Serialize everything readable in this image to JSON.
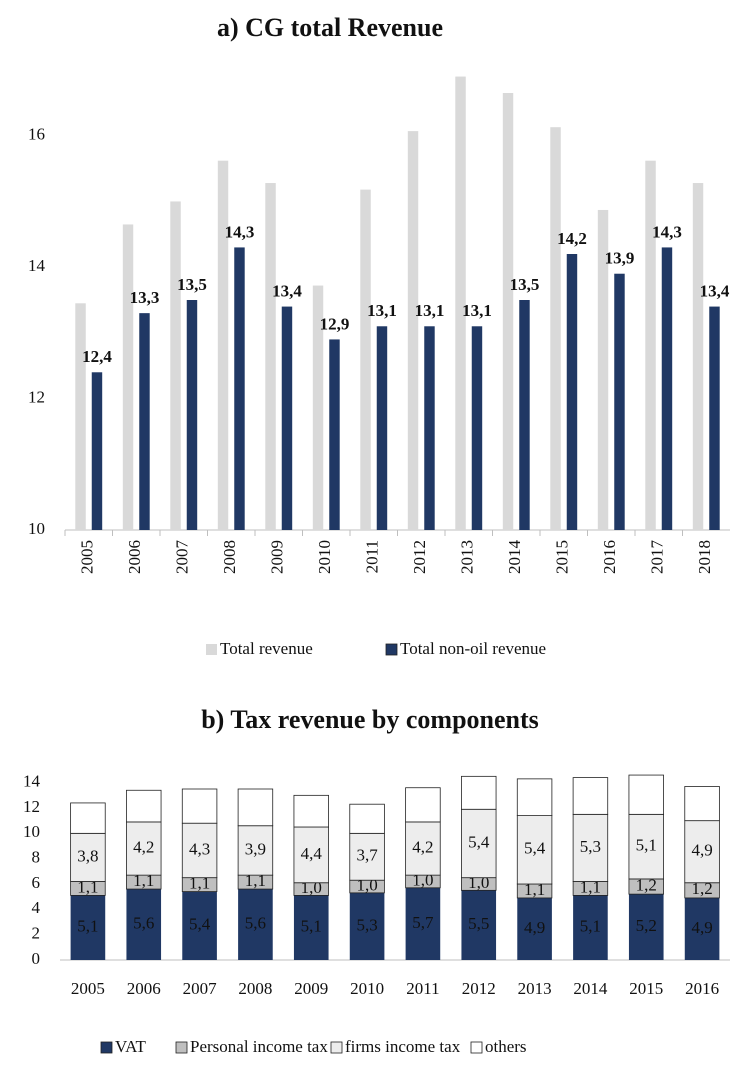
{
  "chart_data": [
    {
      "type": "bar",
      "title": "a) CG total Revenue",
      "categories": [
        "2005",
        "2006",
        "2007",
        "2008",
        "2009",
        "2010",
        "2011",
        "2012",
        "2013",
        "2014",
        "2015",
        "2016",
        "2017",
        "2018"
      ],
      "series": [
        {
          "name": "Total revenue",
          "color": "#d9d9d9",
          "values": [
            13.45,
            14.65,
            15.0,
            15.62,
            15.28,
            13.72,
            15.18,
            16.07,
            16.9,
            16.65,
            16.13,
            14.87,
            15.62,
            15.28
          ]
        },
        {
          "name": "Total non-oil revenue",
          "color": "#203864",
          "values": [
            12.4,
            13.3,
            13.5,
            14.3,
            13.4,
            12.9,
            13.1,
            13.1,
            13.1,
            13.5,
            14.2,
            13.9,
            14.3,
            13.4
          ],
          "value_labels": [
            "12,4",
            "13,3",
            "13,5",
            "14,3",
            "13,4",
            "12,9",
            "13,1",
            "13,1",
            "13,1",
            "13,5",
            "14,2",
            "13,9",
            "14,3",
            "13,4"
          ]
        }
      ],
      "ylim": [
        10,
        17
      ],
      "yticks": [
        10,
        12,
        14,
        16
      ],
      "grid": false,
      "legend": "bottom"
    },
    {
      "type": "stacked_bar",
      "title": "b) Tax revenue by components",
      "categories": [
        "2005",
        "2006",
        "2007",
        "2008",
        "2009",
        "2010",
        "2011",
        "2012",
        "2013",
        "2014",
        "2015",
        "2016"
      ],
      "series": [
        {
          "name": "VAT",
          "color": "#203864",
          "values": [
            5.1,
            5.6,
            5.4,
            5.6,
            5.1,
            5.3,
            5.7,
            5.5,
            4.9,
            5.1,
            5.2,
            4.9
          ],
          "value_labels": [
            "5,1",
            "5,6",
            "5,4",
            "5,6",
            "5,1",
            "5,3",
            "5,7",
            "5,5",
            "4,9",
            "5,1",
            "5,2",
            "4,9"
          ]
        },
        {
          "name": "Personal income tax",
          "color": "#bfbfbf",
          "values": [
            1.1,
            1.1,
            1.1,
            1.1,
            1.0,
            1.0,
            1.0,
            1.0,
            1.1,
            1.1,
            1.2,
            1.2
          ],
          "value_labels": [
            "1,1",
            "1,1",
            "1,1",
            "1,1",
            "1,0",
            "1,0",
            "1,0",
            "1,0",
            "1,1",
            "1,1",
            "1,2",
            "1,2"
          ]
        },
        {
          "name": "firms income tax",
          "color": "#ededed",
          "values": [
            3.8,
            4.2,
            4.3,
            3.9,
            4.4,
            3.7,
            4.2,
            5.4,
            5.4,
            5.3,
            5.1,
            4.9
          ],
          "value_labels": [
            "3,8",
            "4,2",
            "4,3",
            "3,9",
            "4,4",
            "3,7",
            "4,2",
            "5,4",
            "5,4",
            "5,3",
            "5,1",
            "4,9"
          ]
        },
        {
          "name": "others",
          "color": "#ffffff",
          "values": [
            2.4,
            2.5,
            2.7,
            2.9,
            2.5,
            2.3,
            2.7,
            2.6,
            2.9,
            2.9,
            3.1,
            2.7
          ]
        }
      ],
      "ylim": [
        0,
        15
      ],
      "yticks": [
        0,
        2,
        4,
        6,
        8,
        10,
        12,
        14
      ],
      "grid": false,
      "legend": "bottom"
    }
  ]
}
